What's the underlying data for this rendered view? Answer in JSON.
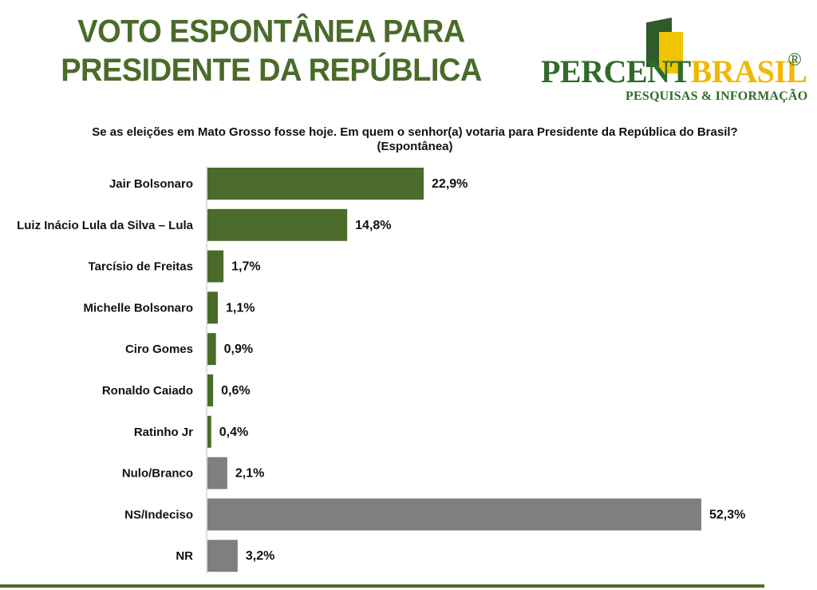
{
  "header": {
    "title_line1": "VOTO ESPONTÂNEA PARA",
    "title_line2": "PRESIDENTE DA REPÚBLICA"
  },
  "logo": {
    "word_part1": "PERCENT",
    "word_part2": "BRASIL",
    "registered": "®",
    "subtitle": "PESQUISAS & INFORMAÇÃO",
    "color_green": "#2f6b2a",
    "color_yellow": "#f0b800"
  },
  "chart_data": {
    "type": "bar",
    "orientation": "horizontal",
    "title": "Se as eleições em Mato Grosso fosse hoje. Em quem o senhor(a) votaria para Presidente da República do Brasil? (Espontânea)",
    "xlabel": "",
    "ylabel": "",
    "xlim": [
      0,
      52.3
    ],
    "grid": false,
    "legend": "none",
    "categories": [
      "Jair Bolsonaro",
      "Luiz Inácio Lula da Silva – Lula",
      "Tarcísio de Freitas",
      "Michelle Bolsonaro",
      "Ciro Gomes",
      "Ronaldo Caiado",
      "Ratinho Jr",
      "Nulo/Branco",
      "NS/Indeciso",
      "NR"
    ],
    "values": [
      22.9,
      14.8,
      1.7,
      1.1,
      0.9,
      0.6,
      0.4,
      2.1,
      52.3,
      3.2
    ],
    "value_labels": [
      "22,9%",
      "14,8%",
      "1,7%",
      "1,1%",
      "0,9%",
      "0,6%",
      "0,4%",
      "2,1%",
      "52,3%",
      "3,2%"
    ],
    "bar_colors": [
      "#4a6b2a",
      "#4a6b2a",
      "#4a6b2a",
      "#4a6b2a",
      "#4a6b2a",
      "#4a6b2a",
      "#4a6b2a",
      "#7f7f7f",
      "#7f7f7f",
      "#7f7f7f"
    ]
  }
}
